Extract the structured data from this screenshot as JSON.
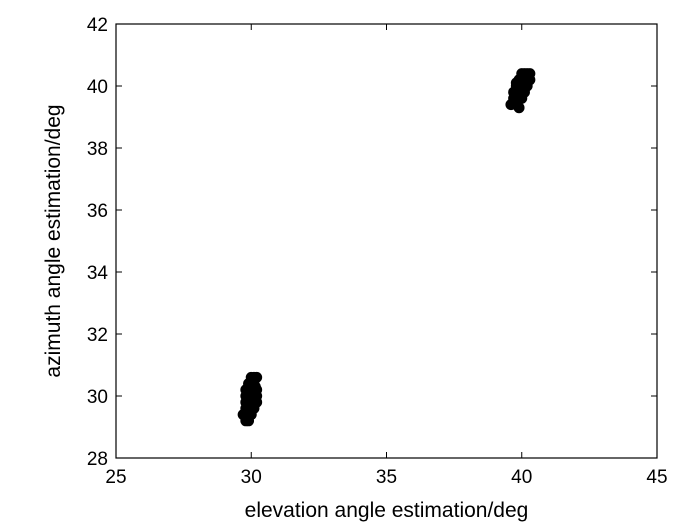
{
  "chart_data": {
    "type": "scatter",
    "xlabel": "elevation angle estimation/deg",
    "ylabel": "azimuth angle estimation/deg",
    "xlim": [
      25,
      45
    ],
    "ylim": [
      28,
      42
    ],
    "xticks": [
      25,
      30,
      35,
      40,
      45
    ],
    "yticks": [
      28,
      30,
      32,
      34,
      36,
      38,
      40,
      42
    ],
    "grid": false,
    "marker_color": "#000000",
    "series": [
      {
        "points": [
          [
            29.8,
            29.2
          ],
          [
            29.9,
            29.2
          ],
          [
            29.8,
            29.4
          ],
          [
            29.9,
            29.4
          ],
          [
            30.0,
            29.4
          ],
          [
            29.7,
            29.4
          ],
          [
            29.8,
            29.6
          ],
          [
            29.9,
            29.6
          ],
          [
            30.0,
            29.6
          ],
          [
            30.1,
            29.6
          ],
          [
            29.8,
            29.8
          ],
          [
            29.9,
            29.8
          ],
          [
            30.0,
            29.8
          ],
          [
            30.1,
            29.8
          ],
          [
            30.2,
            29.8
          ],
          [
            29.8,
            30.0
          ],
          [
            29.9,
            30.0
          ],
          [
            30.0,
            30.0
          ],
          [
            30.1,
            30.0
          ],
          [
            30.2,
            30.0
          ],
          [
            29.8,
            30.2
          ],
          [
            29.9,
            30.2
          ],
          [
            30.0,
            30.2
          ],
          [
            30.1,
            30.2
          ],
          [
            30.2,
            30.2
          ],
          [
            29.9,
            30.4
          ],
          [
            30.0,
            30.4
          ],
          [
            30.1,
            30.4
          ],
          [
            30.0,
            30.6
          ],
          [
            30.1,
            30.6
          ],
          [
            30.2,
            30.6
          ],
          [
            30.15,
            30.3
          ]
        ]
      },
      {
        "points": [
          [
            39.6,
            39.4
          ],
          [
            39.7,
            39.5
          ],
          [
            39.8,
            39.4
          ],
          [
            39.9,
            39.3
          ],
          [
            39.7,
            39.6
          ],
          [
            39.8,
            39.6
          ],
          [
            39.9,
            39.6
          ],
          [
            40.0,
            39.6
          ],
          [
            39.7,
            39.8
          ],
          [
            39.8,
            39.8
          ],
          [
            39.9,
            39.8
          ],
          [
            40.0,
            39.8
          ],
          [
            40.1,
            39.8
          ],
          [
            39.8,
            40.0
          ],
          [
            39.9,
            40.0
          ],
          [
            40.0,
            40.0
          ],
          [
            40.1,
            40.0
          ],
          [
            40.2,
            40.0
          ],
          [
            39.9,
            40.2
          ],
          [
            40.0,
            40.2
          ],
          [
            40.1,
            40.2
          ],
          [
            40.2,
            40.2
          ],
          [
            40.3,
            40.2
          ],
          [
            40.0,
            40.4
          ],
          [
            40.1,
            40.4
          ],
          [
            40.2,
            40.4
          ],
          [
            40.3,
            40.4
          ],
          [
            39.8,
            40.1
          ],
          [
            40.05,
            40.3
          ],
          [
            39.95,
            39.9
          ]
        ]
      }
    ]
  }
}
